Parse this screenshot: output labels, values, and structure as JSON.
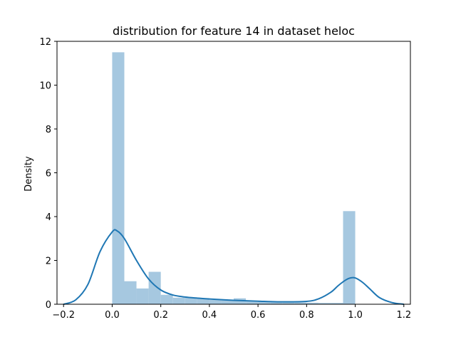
{
  "chart_data": {
    "type": "bar",
    "title": "distribution for feature 14 in dataset heloc",
    "xlabel": "",
    "ylabel": "Density",
    "xlim": [
      -0.227,
      1.227
    ],
    "ylim": [
      0,
      12.0
    ],
    "x_ticks": [
      -0.2,
      0.0,
      0.2,
      0.4,
      0.6,
      0.8,
      1.0,
      1.2
    ],
    "x_tick_labels": [
      "−0.2",
      "0.0",
      "0.2",
      "0.4",
      "0.6",
      "0.8",
      "1.0",
      "1.2"
    ],
    "y_ticks": [
      0,
      2,
      4,
      6,
      8,
      10,
      12
    ],
    "y_tick_labels": [
      "0",
      "2",
      "4",
      "6",
      "8",
      "10",
      "12"
    ],
    "grid": false,
    "histogram": {
      "color": "#a6c8e0",
      "bin_width": 0.05,
      "bins": [
        {
          "x0": 0.0,
          "value": 11.5
        },
        {
          "x0": 0.05,
          "value": 1.05
        },
        {
          "x0": 0.1,
          "value": 0.72
        },
        {
          "x0": 0.15,
          "value": 1.48
        },
        {
          "x0": 0.2,
          "value": 0.43
        },
        {
          "x0": 0.25,
          "value": 0.3
        },
        {
          "x0": 0.3,
          "value": 0.3
        },
        {
          "x0": 0.35,
          "value": 0.28
        },
        {
          "x0": 0.4,
          "value": 0.2
        },
        {
          "x0": 0.45,
          "value": 0.18
        },
        {
          "x0": 0.5,
          "value": 0.27
        },
        {
          "x0": 0.55,
          "value": 0.14
        },
        {
          "x0": 0.6,
          "value": 0.12
        },
        {
          "x0": 0.65,
          "value": 0.1
        },
        {
          "x0": 0.7,
          "value": 0.1
        },
        {
          "x0": 0.75,
          "value": 0.08
        },
        {
          "x0": 0.8,
          "value": 0.07
        },
        {
          "x0": 0.85,
          "value": 0.06
        },
        {
          "x0": 0.9,
          "value": 0.06
        },
        {
          "x0": 0.95,
          "value": 4.25
        }
      ]
    },
    "kde": {
      "color": "#1f77b4",
      "x": [
        -0.2,
        -0.15,
        -0.1,
        -0.05,
        0.0,
        0.02,
        0.05,
        0.1,
        0.15,
        0.2,
        0.25,
        0.3,
        0.35,
        0.4,
        0.5,
        0.6,
        0.7,
        0.8,
        0.85,
        0.9,
        0.93,
        0.96,
        0.98,
        1.0,
        1.03,
        1.06,
        1.1,
        1.15,
        1.2
      ],
      "y": [
        0.0,
        0.2,
        0.9,
        2.4,
        3.3,
        3.35,
        3.0,
        2.0,
        1.15,
        0.65,
        0.42,
        0.33,
        0.28,
        0.24,
        0.18,
        0.14,
        0.11,
        0.13,
        0.25,
        0.55,
        0.85,
        1.1,
        1.2,
        1.2,
        1.0,
        0.7,
        0.3,
        0.08,
        0.0
      ]
    }
  }
}
